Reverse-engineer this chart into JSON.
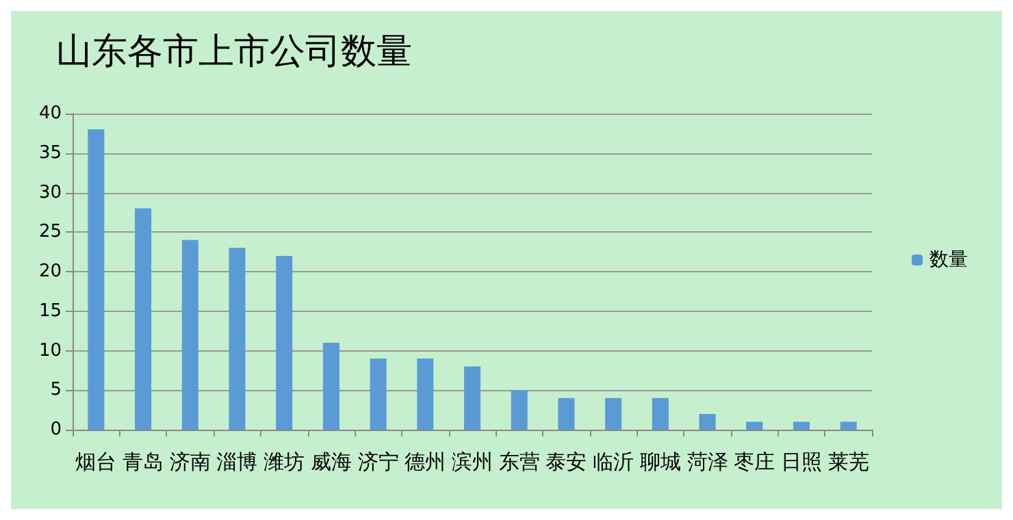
{
  "chart_data": {
    "type": "bar",
    "title": "山东各市上市公司数量",
    "categories": [
      "烟台",
      "青岛",
      "济南",
      "淄博",
      "潍坊",
      "威海",
      "济宁",
      "德州",
      "滨州",
      "东营",
      "泰安",
      "临沂",
      "聊城",
      "菏泽",
      "枣庄",
      "日照",
      "莱芜"
    ],
    "series": [
      {
        "name": "数量",
        "color": "#5b9bd5",
        "values": [
          38,
          28,
          24,
          23,
          22,
          11,
          9,
          9,
          8,
          5,
          4,
          4,
          4,
          2,
          1,
          1,
          1
        ]
      }
    ],
    "ylim": [
      0,
      40
    ],
    "yticks": [
      0,
      5,
      10,
      15,
      20,
      25,
      30,
      35,
      40
    ],
    "grid": "y",
    "legend": "right"
  }
}
